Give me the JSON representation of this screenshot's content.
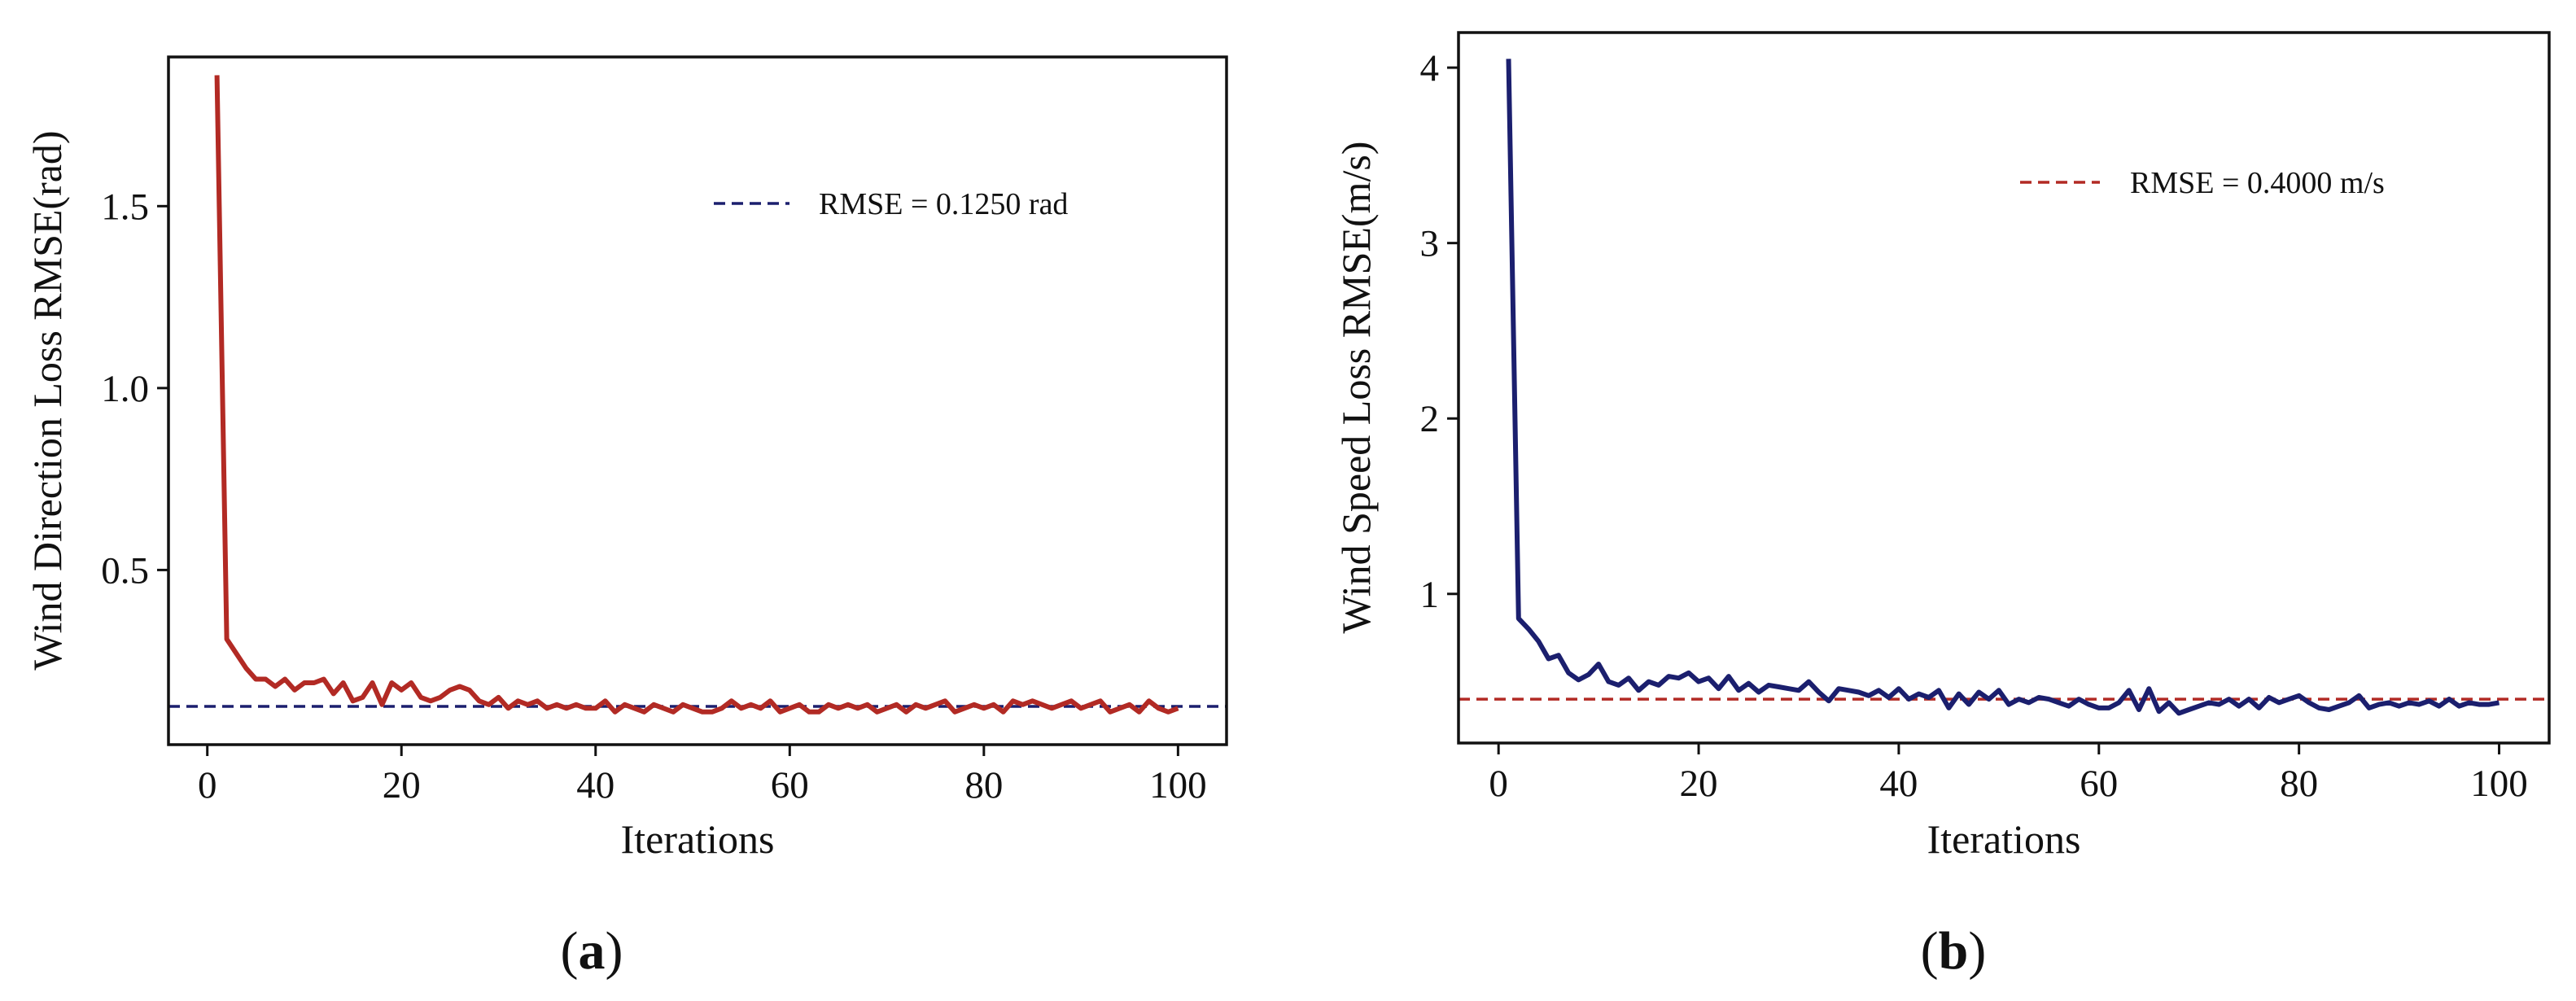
{
  "chart_data": [
    {
      "type": "line",
      "panel_label": {
        "open": "(",
        "letter": "a",
        "close": ")"
      },
      "xlabel": "Iterations",
      "ylabel": "Wind Direction Loss RMSE(rad)",
      "xlim": [
        -4,
        105
      ],
      "ylim": [
        0.02,
        1.91
      ],
      "xticks": [
        0,
        20,
        40,
        60,
        80,
        100
      ],
      "yticks": [
        0.5,
        1.0,
        1.5
      ],
      "ytick_labels": [
        "0.5",
        "1.0",
        "1.5"
      ],
      "series_color": "#b22a24",
      "reference_color": "#1b1f6e",
      "legend": {
        "label": "RMSE = 0.1250 rad",
        "placement": "top-right"
      },
      "reference_line": {
        "value": 0.125,
        "style": "dashed"
      },
      "series": [
        {
          "name": "Wind direction loss",
          "x": [
            1,
            2,
            3,
            4,
            5,
            6,
            7,
            8,
            9,
            10,
            11,
            12,
            13,
            14,
            15,
            16,
            17,
            18,
            19,
            20,
            21,
            22,
            23,
            24,
            25,
            26,
            27,
            28,
            29,
            30,
            31,
            32,
            33,
            34,
            35,
            36,
            37,
            38,
            39,
            40,
            41,
            42,
            43,
            44,
            45,
            46,
            47,
            48,
            49,
            50,
            51,
            52,
            53,
            54,
            55,
            56,
            57,
            58,
            59,
            60,
            61,
            62,
            63,
            64,
            65,
            66,
            67,
            68,
            69,
            70,
            71,
            72,
            73,
            74,
            75,
            76,
            77,
            78,
            79,
            80,
            81,
            82,
            83,
            84,
            85,
            86,
            87,
            88,
            89,
            90,
            91,
            92,
            93,
            94,
            95,
            96,
            97,
            98,
            99,
            100
          ],
          "values": [
            1.86,
            0.31,
            0.27,
            0.23,
            0.2,
            0.2,
            0.18,
            0.2,
            0.17,
            0.19,
            0.19,
            0.2,
            0.16,
            0.19,
            0.14,
            0.15,
            0.19,
            0.13,
            0.19,
            0.17,
            0.19,
            0.15,
            0.14,
            0.15,
            0.17,
            0.18,
            0.17,
            0.14,
            0.13,
            0.15,
            0.12,
            0.14,
            0.13,
            0.14,
            0.12,
            0.13,
            0.12,
            0.13,
            0.12,
            0.12,
            0.14,
            0.11,
            0.13,
            0.12,
            0.11,
            0.13,
            0.12,
            0.11,
            0.13,
            0.12,
            0.11,
            0.11,
            0.12,
            0.14,
            0.12,
            0.13,
            0.12,
            0.14,
            0.11,
            0.12,
            0.13,
            0.11,
            0.11,
            0.13,
            0.12,
            0.13,
            0.12,
            0.13,
            0.11,
            0.12,
            0.13,
            0.11,
            0.13,
            0.12,
            0.13,
            0.14,
            0.11,
            0.12,
            0.13,
            0.12,
            0.13,
            0.11,
            0.14,
            0.13,
            0.14,
            0.13,
            0.12,
            0.13,
            0.14,
            0.12,
            0.13,
            0.14,
            0.11,
            0.12,
            0.13,
            0.11,
            0.14,
            0.12,
            0.11,
            0.12
          ]
        }
      ]
    },
    {
      "type": "line",
      "panel_label": {
        "open": "(",
        "letter": "b",
        "close": ")"
      },
      "xlabel": "Iterations",
      "ylabel": "Wind Speed Loss RMSE(m/s)",
      "xlim": [
        -4,
        105
      ],
      "ylim": [
        0.15,
        4.2
      ],
      "xticks": [
        0,
        20,
        40,
        60,
        80,
        100
      ],
      "yticks": [
        1,
        2,
        3,
        4
      ],
      "ytick_labels": [
        "1",
        "2",
        "3",
        "4"
      ],
      "series_color": "#1b1f6e",
      "reference_color": "#b22a24",
      "legend": {
        "label": "RMSE = 0.4000 m/s",
        "placement": "top-right"
      },
      "reference_line": {
        "value": 0.4,
        "style": "dashed"
      },
      "series": [
        {
          "name": "Wind speed loss",
          "x": [
            1,
            2,
            3,
            4,
            5,
            6,
            7,
            8,
            9,
            10,
            11,
            12,
            13,
            14,
            15,
            16,
            17,
            18,
            19,
            20,
            21,
            22,
            23,
            24,
            25,
            26,
            27,
            28,
            29,
            30,
            31,
            32,
            33,
            34,
            35,
            36,
            37,
            38,
            39,
            40,
            41,
            42,
            43,
            44,
            45,
            46,
            47,
            48,
            49,
            50,
            51,
            52,
            53,
            54,
            55,
            56,
            57,
            58,
            59,
            60,
            61,
            62,
            63,
            64,
            65,
            66,
            67,
            68,
            69,
            70,
            71,
            72,
            73,
            74,
            75,
            76,
            77,
            78,
            79,
            80,
            81,
            82,
            83,
            84,
            85,
            86,
            87,
            88,
            89,
            90,
            91,
            92,
            93,
            94,
            95,
            96,
            97,
            98,
            99,
            100
          ],
          "values": [
            4.05,
            0.86,
            0.8,
            0.73,
            0.63,
            0.65,
            0.55,
            0.51,
            0.54,
            0.6,
            0.5,
            0.48,
            0.52,
            0.45,
            0.5,
            0.48,
            0.53,
            0.52,
            0.55,
            0.5,
            0.52,
            0.46,
            0.53,
            0.45,
            0.49,
            0.44,
            0.48,
            0.47,
            0.46,
            0.45,
            0.5,
            0.44,
            0.39,
            0.46,
            0.45,
            0.44,
            0.42,
            0.45,
            0.41,
            0.46,
            0.4,
            0.43,
            0.41,
            0.45,
            0.35,
            0.43,
            0.37,
            0.44,
            0.4,
            0.45,
            0.37,
            0.4,
            0.38,
            0.41,
            0.4,
            0.38,
            0.36,
            0.4,
            0.37,
            0.35,
            0.35,
            0.38,
            0.45,
            0.34,
            0.46,
            0.33,
            0.38,
            0.32,
            0.34,
            0.36,
            0.38,
            0.37,
            0.4,
            0.36,
            0.4,
            0.35,
            0.41,
            0.38,
            0.4,
            0.42,
            0.38,
            0.35,
            0.34,
            0.36,
            0.38,
            0.42,
            0.35,
            0.37,
            0.38,
            0.36,
            0.38,
            0.37,
            0.39,
            0.36,
            0.4,
            0.36,
            0.38,
            0.37,
            0.37,
            0.38
          ]
        }
      ]
    }
  ]
}
